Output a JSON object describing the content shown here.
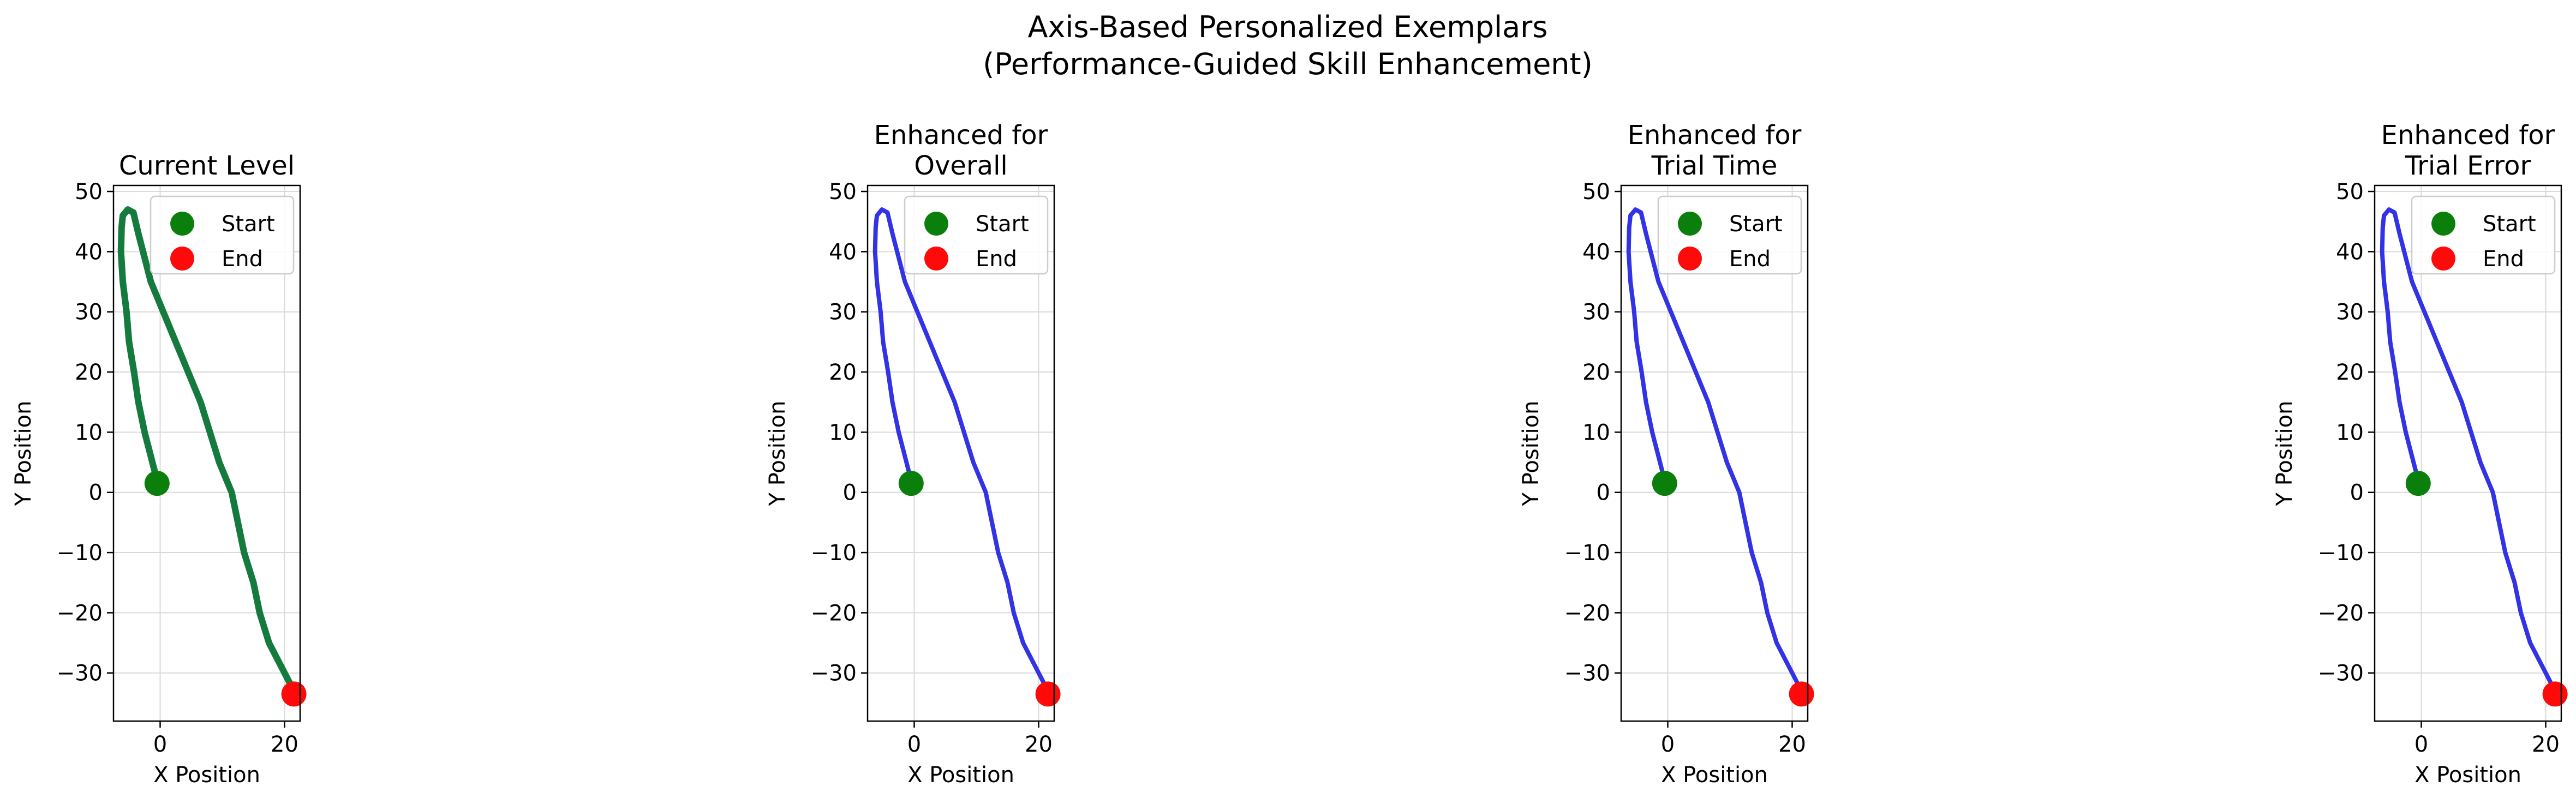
{
  "figure": {
    "suptitle_line1": "Axis-Based Personalized Exemplars",
    "suptitle_line2": "(Performance-Guided Skill Enhancement)"
  },
  "colors": {
    "current": "#157a3e",
    "enhanced": "#3232e6",
    "start_marker": "#0b7f0b",
    "end_marker": "#ff0a0a",
    "grid": "#d9d9d9",
    "legend_border": "#cccccc"
  },
  "chart_data": [
    {
      "type": "line",
      "title": [
        "Current Level"
      ],
      "xlabel": "X Position",
      "ylabel": "Y Position",
      "xlim": [
        -7.5,
        22.5
      ],
      "ylim": [
        -38,
        51
      ],
      "xticks": [
        0,
        20
      ],
      "yticks": [
        -30,
        -20,
        -10,
        0,
        10,
        20,
        30,
        40,
        50
      ],
      "grid": true,
      "legend": {
        "placement": "upper-right",
        "entries": [
          "Start",
          "End"
        ]
      },
      "series": [
        {
          "color": "#157a3e",
          "x": [
            -0.5,
            -1.5,
            -2.5,
            -3.5,
            -4.2,
            -5.0,
            -5.4,
            -6.0,
            -6.3,
            -6.2,
            -6.0,
            -5.2,
            -4.3,
            -3.5,
            -2.5,
            -1.5,
            0.5,
            2.5,
            4.5,
            6.5,
            8.0,
            9.5,
            11.5,
            12.5,
            13.5,
            15.0,
            16.0,
            17.5,
            19.0,
            20.0,
            21.0,
            22.0
          ],
          "y": [
            2,
            6,
            10,
            15,
            20,
            25,
            30,
            35,
            40,
            44,
            46,
            47,
            46.5,
            43,
            39,
            35,
            30,
            25,
            20,
            15,
            10,
            5,
            0,
            -5,
            -10,
            -15,
            -20,
            -25,
            -28,
            -30,
            -32,
            -34
          ]
        }
      ],
      "points": {
        "start": [
          -0.5,
          1.5
        ],
        "end": [
          21.5,
          -33.5
        ]
      }
    },
    {
      "type": "line",
      "title": [
        "Enhanced for",
        "Overall"
      ],
      "xlabel": "X Position",
      "ylabel": "Y Position",
      "xlim": [
        -7.5,
        22.5
      ],
      "ylim": [
        -38,
        51
      ],
      "xticks": [
        0,
        20
      ],
      "yticks": [
        -30,
        -20,
        -10,
        0,
        10,
        20,
        30,
        40,
        50
      ],
      "grid": true,
      "legend": {
        "placement": "upper-right",
        "entries": [
          "Start",
          "End"
        ]
      },
      "series": [
        {
          "color": "#3232e6",
          "x": [
            -0.5,
            -1.5,
            -2.5,
            -3.5,
            -4.2,
            -5.0,
            -5.4,
            -6.0,
            -6.3,
            -6.2,
            -6.0,
            -5.2,
            -4.3,
            -3.5,
            -2.5,
            -1.5,
            0.5,
            2.5,
            4.5,
            6.5,
            8.0,
            9.5,
            11.5,
            12.5,
            13.5,
            15.0,
            16.0,
            17.5,
            19.0,
            20.0,
            21.0,
            22.0
          ],
          "y": [
            2,
            6,
            10,
            15,
            20,
            25,
            30,
            35,
            40,
            44,
            46,
            47,
            46.5,
            43,
            39,
            35,
            30,
            25,
            20,
            15,
            10,
            5,
            0,
            -5,
            -10,
            -15,
            -20,
            -25,
            -28,
            -30,
            -32,
            -34
          ]
        }
      ],
      "points": {
        "start": [
          -0.5,
          1.5
        ],
        "end": [
          21.5,
          -33.5
        ]
      }
    },
    {
      "type": "line",
      "title": [
        "Enhanced for",
        "Trial Time"
      ],
      "xlabel": "X Position",
      "ylabel": "Y Position",
      "xlim": [
        -7.5,
        22.5
      ],
      "ylim": [
        -38,
        51
      ],
      "xticks": [
        0,
        20
      ],
      "yticks": [
        -30,
        -20,
        -10,
        0,
        10,
        20,
        30,
        40,
        50
      ],
      "grid": true,
      "legend": {
        "placement": "upper-right",
        "entries": [
          "Start",
          "End"
        ]
      },
      "series": [
        {
          "color": "#3232e6",
          "x": [
            -0.5,
            -1.5,
            -2.5,
            -3.5,
            -4.2,
            -5.0,
            -5.4,
            -6.0,
            -6.3,
            -6.2,
            -6.0,
            -5.2,
            -4.3,
            -3.5,
            -2.5,
            -1.5,
            0.5,
            2.5,
            4.5,
            6.5,
            8.0,
            9.5,
            11.5,
            12.5,
            13.5,
            15.0,
            16.0,
            17.5,
            19.0,
            20.0,
            21.0,
            22.0
          ],
          "y": [
            2,
            6,
            10,
            15,
            20,
            25,
            30,
            35,
            40,
            44,
            46,
            47,
            46.5,
            43,
            39,
            35,
            30,
            25,
            20,
            15,
            10,
            5,
            0,
            -5,
            -10,
            -15,
            -20,
            -25,
            -28,
            -30,
            -32,
            -34
          ]
        }
      ],
      "points": {
        "start": [
          -0.5,
          1.5
        ],
        "end": [
          21.5,
          -33.5
        ]
      }
    },
    {
      "type": "line",
      "title": [
        "Enhanced for",
        "Trial Error"
      ],
      "xlabel": "X Position",
      "ylabel": "Y Position",
      "xlim": [
        -7.5,
        22.5
      ],
      "ylim": [
        -38,
        51
      ],
      "xticks": [
        0,
        20
      ],
      "yticks": [
        -30,
        -20,
        -10,
        0,
        10,
        20,
        30,
        40,
        50
      ],
      "grid": true,
      "legend": {
        "placement": "upper-right",
        "entries": [
          "Start",
          "End"
        ]
      },
      "series": [
        {
          "color": "#3232e6",
          "x": [
            -0.5,
            -1.5,
            -2.5,
            -3.5,
            -4.2,
            -5.0,
            -5.4,
            -6.0,
            -6.3,
            -6.2,
            -6.0,
            -5.2,
            -4.3,
            -3.5,
            -2.5,
            -1.5,
            0.5,
            2.5,
            4.5,
            6.5,
            8.0,
            9.5,
            11.5,
            12.5,
            13.5,
            15.0,
            16.0,
            17.5,
            19.0,
            20.0,
            21.0,
            22.0
          ],
          "y": [
            2,
            6,
            10,
            15,
            20,
            25,
            30,
            35,
            40,
            44,
            46,
            47,
            46.5,
            43,
            39,
            35,
            30,
            25,
            20,
            15,
            10,
            5,
            0,
            -5,
            -10,
            -15,
            -20,
            -25,
            -28,
            -30,
            -32,
            -34
          ]
        }
      ],
      "points": {
        "start": [
          -0.5,
          1.5
        ],
        "end": [
          21.5,
          -33.5
        ]
      }
    }
  ]
}
